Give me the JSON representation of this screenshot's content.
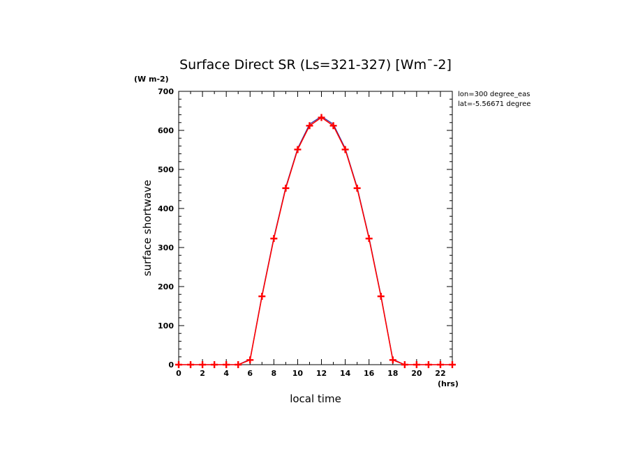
{
  "chart_data": {
    "type": "line",
    "title": "Surface Direct SR (Ls=321-327) [Wm¯-2]",
    "xlabel": "local time",
    "ylabel": "surface shortwave",
    "x_unit": "(hrs)",
    "y_unit": "(W m-2)",
    "xlim": [
      0,
      23
    ],
    "ylim": [
      0,
      700
    ],
    "x_ticks": [
      0,
      2,
      4,
      6,
      8,
      10,
      12,
      14,
      16,
      18,
      20,
      22
    ],
    "y_ticks": [
      0,
      100,
      200,
      300,
      400,
      500,
      600,
      700
    ],
    "annotations": [
      "lon=300 degree_eas",
      "lat=-5.56671 degree"
    ],
    "grid": false,
    "series": [
      {
        "color": "#ff0000",
        "marker": "plus",
        "x": [
          0,
          1,
          2,
          3,
          4,
          5,
          6,
          7,
          8,
          9,
          10,
          11,
          12,
          13,
          14,
          15,
          16,
          17,
          18,
          19,
          20,
          21,
          22,
          23
        ],
        "y": [
          0,
          0,
          0,
          0,
          0,
          0,
          12,
          175,
          323,
          452,
          551,
          612,
          633,
          612,
          551,
          452,
          323,
          175,
          12,
          0,
          0,
          0,
          0,
          0
        ]
      },
      {
        "color": "#2a2aa0",
        "marker": "none",
        "x": [
          0,
          1,
          2,
          3,
          4,
          5,
          6,
          7,
          8,
          9,
          10,
          11,
          12,
          13,
          14,
          15,
          16,
          17,
          18,
          19,
          20,
          21,
          22,
          23
        ],
        "y": [
          0,
          0,
          0,
          0,
          0,
          0,
          14,
          178,
          326,
          455,
          554,
          616,
          636,
          616,
          554,
          455,
          326,
          178,
          14,
          0,
          0,
          0,
          0,
          0
        ]
      }
    ]
  }
}
